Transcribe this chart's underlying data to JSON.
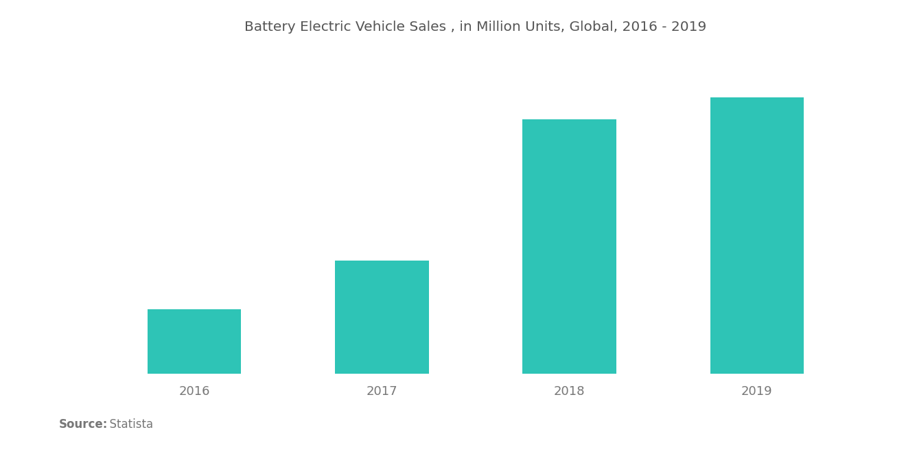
{
  "title": "Battery Electric Vehicle Sales , in Million Units, Global, 2016 - 2019",
  "categories": [
    "2016",
    "2017",
    "2018",
    "2019"
  ],
  "values": [
    0.32,
    0.56,
    1.26,
    1.37
  ],
  "bar_color": "#2EC4B6",
  "bar_width": 0.5,
  "background_color": "#ffffff",
  "title_color": "#555555",
  "tick_color": "#777777",
  "title_fontsize": 14.5,
  "tick_fontsize": 13,
  "source_label_bold": "Source:",
  "source_label_regular": "  Statista",
  "source_fontsize": 12,
  "source_color": "#777777",
  "ylim": [
    0,
    1.58
  ],
  "xlim_left": -0.65,
  "xlim_right": 3.65
}
